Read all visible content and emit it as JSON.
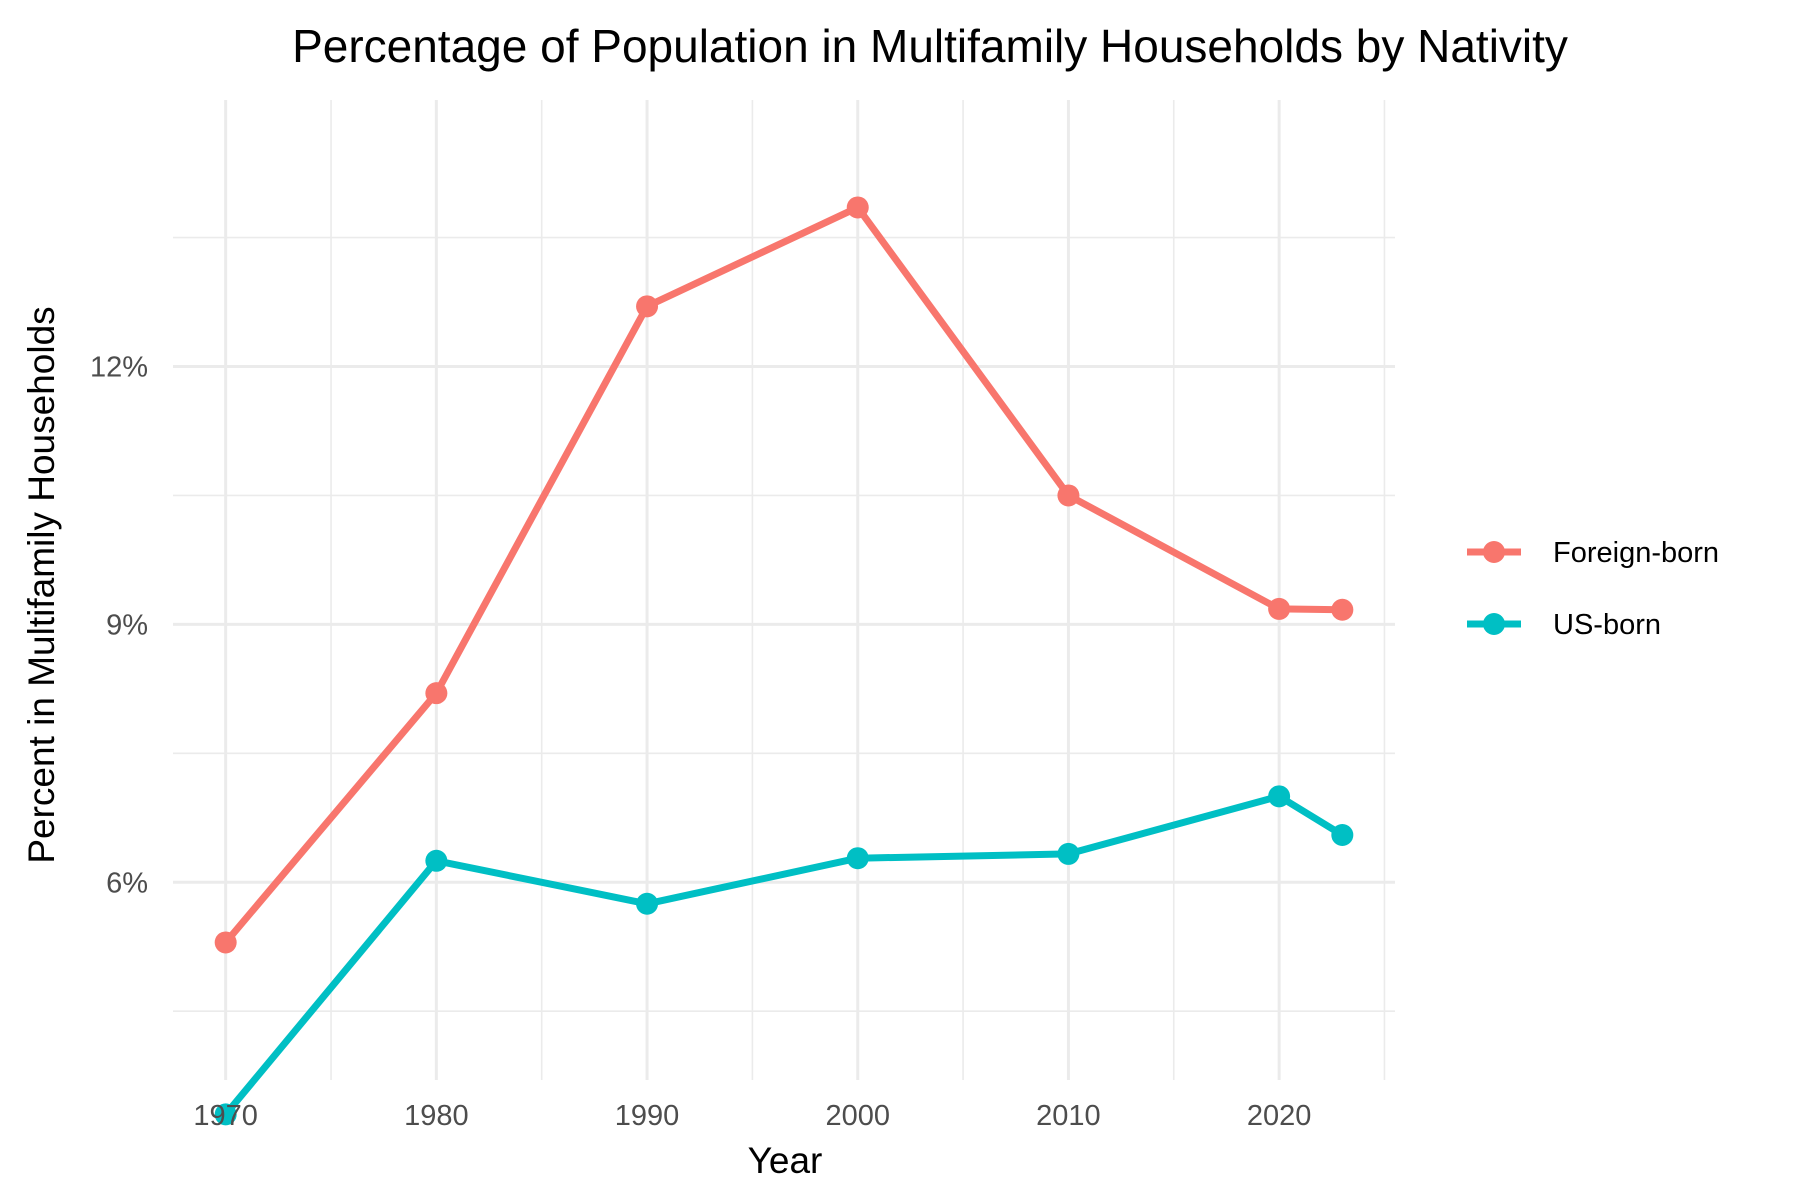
{
  "chart_data": {
    "type": "line",
    "title": "Percentage of Population in Multifamily Households by Nativity",
    "xlabel": "Year",
    "ylabel": "Percent in Multifamily Households",
    "x": [
      1970,
      1980,
      1990,
      2000,
      2010,
      2020,
      2023
    ],
    "xlim": [
      1967.5,
      2025.5
    ],
    "ylim": [
      3.7,
      15.1
    ],
    "x_ticks": [
      1970,
      1980,
      1990,
      2000,
      2010,
      2020
    ],
    "x_tick_labels": [
      "1970",
      "1980",
      "1990",
      "2000",
      "2010",
      "2020"
    ],
    "x_minor_ticks": [
      1975,
      1985,
      1995,
      2005,
      2015,
      2025
    ],
    "y_ticks": [
      6,
      9,
      12
    ],
    "y_tick_labels": [
      "6%",
      "9%",
      "12%"
    ],
    "y_minor_ticks": [
      4.5,
      7.5,
      10.5,
      13.5
    ],
    "grid": true,
    "legend_position": "right",
    "series": [
      {
        "name": "Foreign-born",
        "color": "#F8766D",
        "values": [
          5.3,
          8.2,
          12.7,
          13.85,
          10.5,
          9.18,
          9.17
        ]
      },
      {
        "name": "US-born",
        "color": "#00BFC4",
        "values": [
          3.3,
          6.25,
          5.75,
          6.28,
          6.33,
          7.0,
          6.55
        ]
      }
    ]
  }
}
